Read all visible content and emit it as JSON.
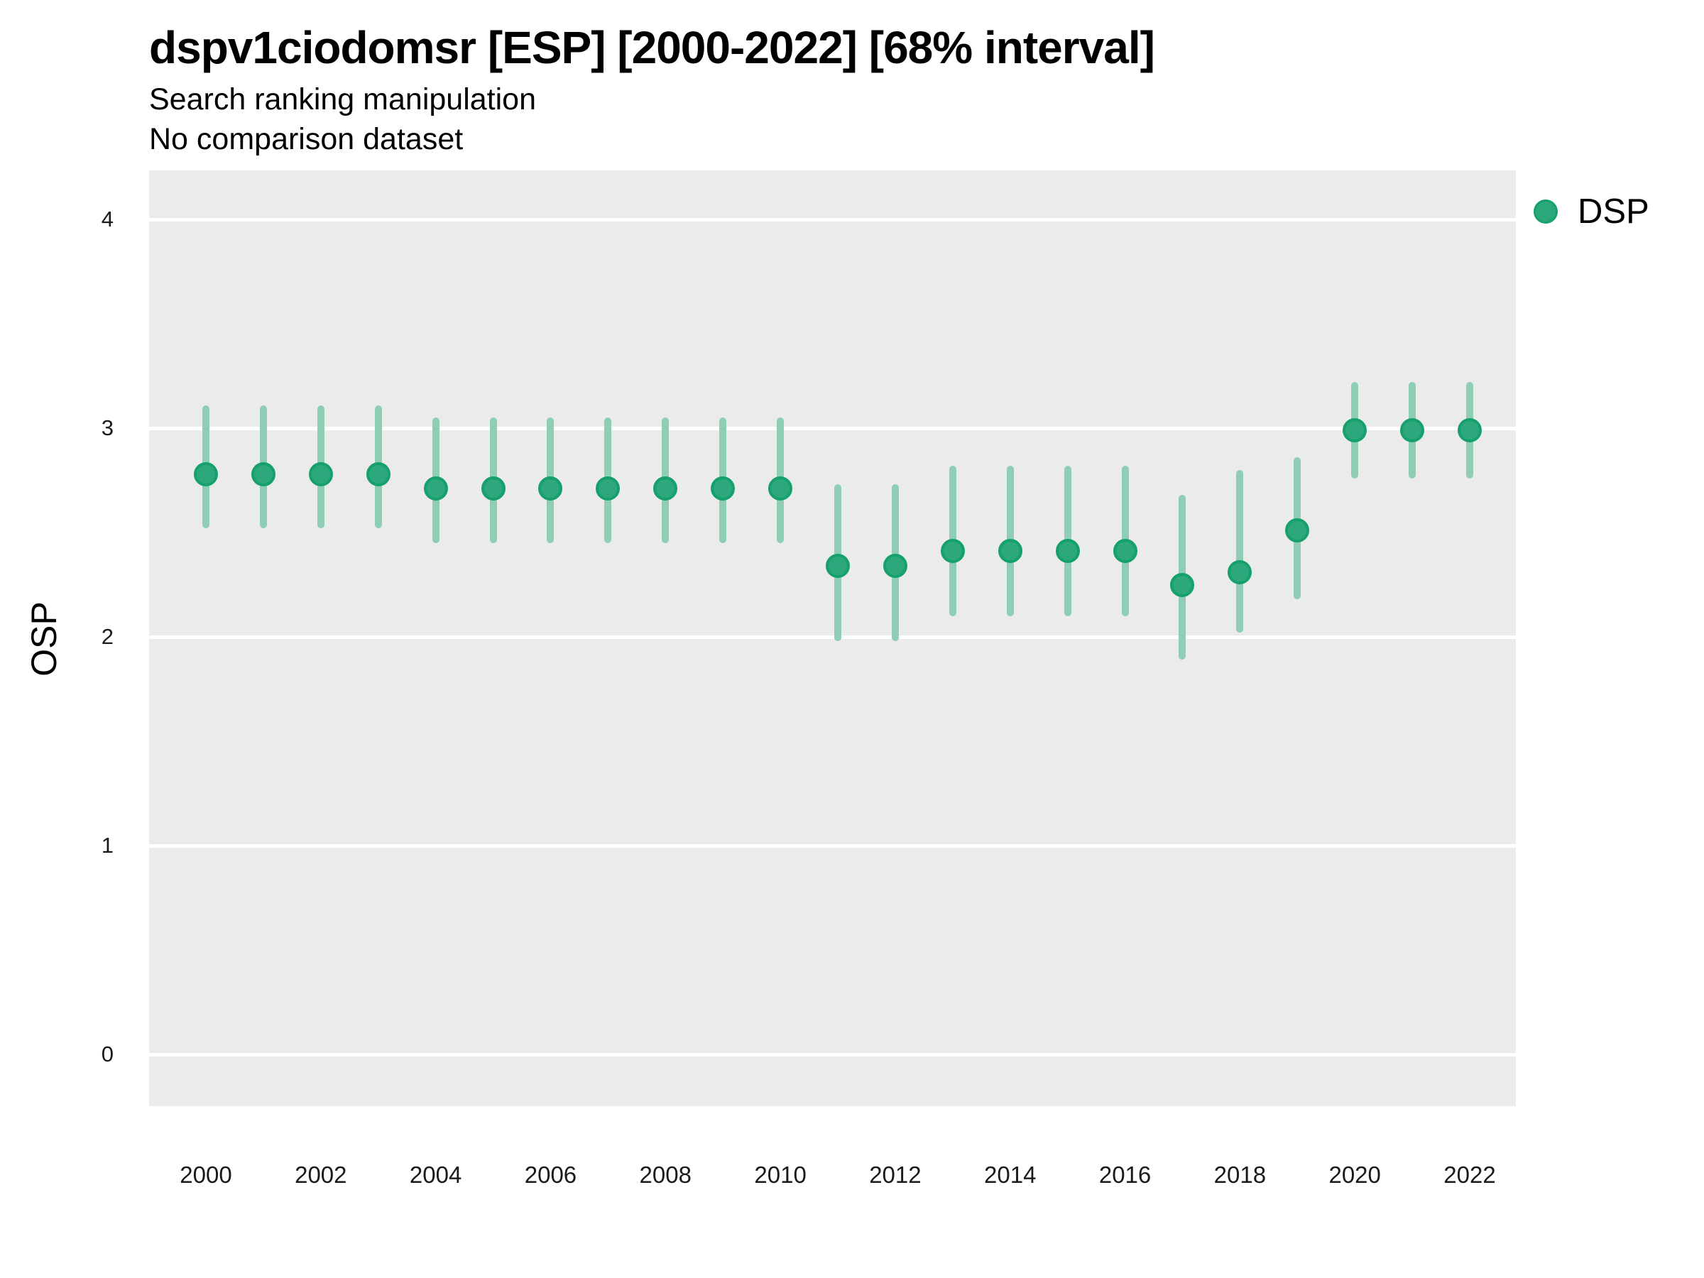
{
  "header": {
    "title": "dspv1ciodomsr [ESP] [2000-2022] [68% interval]",
    "subtitle": "Search ranking manipulation",
    "caption": "No comparison dataset"
  },
  "legend": {
    "items": [
      {
        "label": "DSP",
        "color": "#2AA87C"
      }
    ],
    "position": "right-top"
  },
  "axes": {
    "y_title": "OSP",
    "y_ticks": [
      "0",
      "1",
      "2",
      "3",
      "4"
    ],
    "x_ticks": [
      "2000",
      "2002",
      "2004",
      "2006",
      "2008",
      "2010",
      "2012",
      "2014",
      "2016",
      "2018",
      "2020",
      "2022"
    ]
  },
  "colors": {
    "point_fill": "#2CA87C",
    "point_stroke": "#16A06C",
    "interval_bar": "#8FCDB4",
    "panel_background": "#EBEBEB",
    "gridline": "#FFFFFF",
    "text": "#000000"
  },
  "chart_data": {
    "type": "scatter",
    "subtype": "pointrange (point estimate with 68% interval)",
    "title": "dspv1ciodomsr [ESP] [2000-2022] [68% interval]",
    "subtitle": "Search ranking manipulation",
    "caption": "No comparison dataset",
    "xlabel": "",
    "ylabel": "OSP",
    "ylim": [
      -0.25,
      4.22
    ],
    "xlim": [
      2000,
      2022
    ],
    "grid": "major horizontal white lines on gray panel",
    "legend_position": "right-top",
    "series": [
      {
        "name": "DSP",
        "x": [
          2000,
          2001,
          2002,
          2003,
          2004,
          2005,
          2006,
          2007,
          2008,
          2009,
          2010,
          2011,
          2012,
          2013,
          2014,
          2015,
          2016,
          2017,
          2018,
          2019,
          2020,
          2021,
          2022
        ],
        "y": [
          2.78,
          2.78,
          2.78,
          2.78,
          2.71,
          2.71,
          2.71,
          2.71,
          2.71,
          2.71,
          2.71,
          2.34,
          2.34,
          2.41,
          2.41,
          2.41,
          2.41,
          2.25,
          2.31,
          2.51,
          2.99,
          2.99,
          2.99
        ],
        "y_lo": [
          2.52,
          2.52,
          2.52,
          2.52,
          2.45,
          2.45,
          2.45,
          2.45,
          2.45,
          2.45,
          2.45,
          1.98,
          1.98,
          2.1,
          2.1,
          2.1,
          2.1,
          1.89,
          2.02,
          2.18,
          2.76,
          2.76,
          2.76
        ],
        "y_hi": [
          3.11,
          3.11,
          3.11,
          3.11,
          3.05,
          3.05,
          3.05,
          3.05,
          3.05,
          3.05,
          3.05,
          2.73,
          2.73,
          2.82,
          2.82,
          2.82,
          2.82,
          2.68,
          2.8,
          2.86,
          3.22,
          3.22,
          3.22
        ]
      }
    ]
  }
}
